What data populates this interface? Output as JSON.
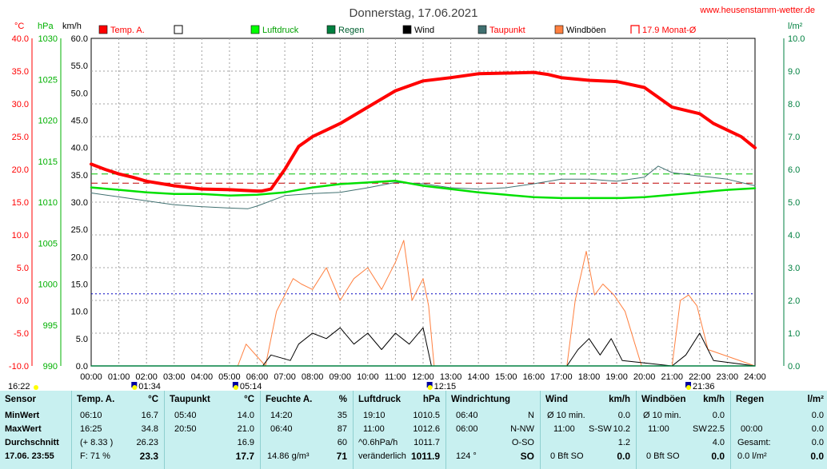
{
  "header": {
    "title": "Donnerstag, 17.06.2021",
    "website": "www.heusenstamm-wetter.de",
    "unit_temp": "°C",
    "unit_pressure": "hPa",
    "unit_wind": "km/h",
    "unit_rain": "l/m²"
  },
  "legend": [
    {
      "label": "Temp. A.",
      "color": "#ff0000",
      "style": "filled"
    },
    {
      "label": "",
      "color": "#ffffff",
      "style": "box"
    },
    {
      "label": "Luftdruck",
      "color": "#00ff00",
      "style": "filled"
    },
    {
      "label": "Regen",
      "color": "#008040",
      "style": "filled"
    },
    {
      "label": "Wind",
      "color": "#000000",
      "style": "filled"
    },
    {
      "label": "Taupunkt",
      "color": "#407070",
      "style": "filled"
    },
    {
      "label": "Windböen",
      "color": "#ff8040",
      "style": "filled"
    },
    {
      "label": "17.9 Monat-Ø",
      "color": "#ff0000",
      "style": "bracket"
    }
  ],
  "axes": {
    "temp_ticks": [
      "40.0",
      "35.0",
      "30.0",
      "25.0",
      "20.0",
      "15.0",
      "10.0",
      "5.0",
      "0.0",
      "-5.0",
      "-10.0"
    ],
    "pressure_ticks": [
      "1030",
      "1025",
      "1020",
      "1015",
      "1010",
      "1005",
      "1000",
      "995",
      "990"
    ],
    "wind_ticks": [
      "60.0",
      "55.0",
      "50.0",
      "45.0",
      "40.0",
      "35.0",
      "30.0",
      "25.0",
      "20.0",
      "15.0",
      "10.0",
      "5.0",
      "0.0"
    ],
    "rain_ticks": [
      "10.0",
      "9.0",
      "8.0",
      "7.0",
      "6.0",
      "5.0",
      "4.0",
      "3.0",
      "2.0",
      "1.0",
      "0.0"
    ],
    "time_ticks": [
      "00:00",
      "01:00",
      "02:00",
      "03:00",
      "04:00",
      "05:00",
      "06:00",
      "07:00",
      "08:00",
      "09:00",
      "10:00",
      "11:00",
      "12:00",
      "13:00",
      "14:00",
      "15:00",
      "16:00",
      "17:00",
      "18:00",
      "19:00",
      "20:00",
      "21:00",
      "22:00",
      "23:00",
      "24:00"
    ],
    "markers": [
      {
        "label": "16:22",
        "hour": -3.3
      },
      {
        "label": "01:34",
        "hour": 1.57
      },
      {
        "label": "05:14",
        "hour": 5.23
      },
      {
        "label": "12:15",
        "hour": 12.25
      },
      {
        "label": "21:36",
        "hour": 21.6
      }
    ]
  },
  "chart_data": {
    "type": "line",
    "x_unit": "hour",
    "x_range": [
      0,
      24
    ],
    "grid": true,
    "legend_position": "top",
    "reference_lines": [
      {
        "name": "Monat-Ø",
        "axis": "temp",
        "value": 17.9,
        "color": "#c00000",
        "style": "dashed"
      },
      {
        "axis": "temp",
        "value": 19.3,
        "color": "#00c000",
        "style": "dashed"
      },
      {
        "axis": "temp",
        "value": 1.0,
        "color": "#0000c0",
        "style": "dotted"
      }
    ],
    "series": [
      {
        "name": "Temp. A.",
        "axis": "temp",
        "color": "#ff0000",
        "x": [
          0,
          0.5,
          1,
          1.5,
          2,
          3,
          4,
          5,
          6,
          6.17,
          6.5,
          7,
          7.5,
          8,
          8.5,
          9,
          10,
          11,
          12,
          13,
          14,
          15,
          16,
          16.5,
          17,
          18,
          19,
          20,
          20.5,
          21,
          22,
          22.5,
          23,
          23.5,
          24
        ],
        "y": [
          20.8,
          20.0,
          19.3,
          18.8,
          18.2,
          17.5,
          17.0,
          16.9,
          16.7,
          16.7,
          17.0,
          20.0,
          23.5,
          25.0,
          26.0,
          27.0,
          29.5,
          32.0,
          33.5,
          34.0,
          34.6,
          34.7,
          34.8,
          34.5,
          34.0,
          33.6,
          33.4,
          32.5,
          31.0,
          29.5,
          28.5,
          27.0,
          26.0,
          25.0,
          23.3
        ]
      },
      {
        "name": "Luftdruck",
        "axis": "pressure",
        "color": "#00e000",
        "x": [
          0,
          1,
          2,
          3,
          4,
          5,
          6,
          7,
          8,
          9,
          10,
          11,
          12,
          13,
          14,
          15,
          16,
          17,
          18,
          19,
          19.17,
          20,
          21,
          22,
          23,
          24
        ],
        "y": [
          1011.8,
          1011.5,
          1011.2,
          1011.0,
          1011.0,
          1010.8,
          1010.9,
          1011.2,
          1011.8,
          1012.2,
          1012.4,
          1012.6,
          1012.0,
          1011.6,
          1011.2,
          1010.9,
          1010.6,
          1010.5,
          1010.5,
          1010.5,
          1010.5,
          1010.6,
          1010.9,
          1011.2,
          1011.5,
          1011.7
        ]
      },
      {
        "name": "Taupunkt",
        "axis": "temp",
        "color": "#407070",
        "x": [
          0,
          1,
          2,
          3,
          4,
          5,
          5.67,
          6,
          7,
          8,
          9,
          10,
          11,
          12,
          13,
          14,
          15,
          16,
          17,
          18,
          19,
          20,
          20.5,
          21,
          22,
          23,
          24
        ],
        "y": [
          16.4,
          15.8,
          15.2,
          14.6,
          14.3,
          14.1,
          14.0,
          14.4,
          16.0,
          16.3,
          16.5,
          17.2,
          18.0,
          17.8,
          17.2,
          17.0,
          17.2,
          17.8,
          18.5,
          18.5,
          18.2,
          18.8,
          20.5,
          19.5,
          19.0,
          18.5,
          17.5
        ]
      },
      {
        "name": "Wind",
        "axis": "wind",
        "color": "#000000",
        "x": [
          0,
          6.2,
          6.5,
          7.2,
          7.5,
          8,
          8.5,
          9,
          9.5,
          10,
          10.5,
          11,
          11.5,
          12,
          12.3,
          17.2,
          17.6,
          18,
          18.4,
          18.8,
          19.2,
          21,
          21.5,
          22,
          22.5,
          24
        ],
        "y": [
          0,
          0,
          2,
          1,
          4,
          6,
          5,
          7,
          4,
          6,
          3,
          6,
          4,
          7,
          0,
          0,
          3,
          5,
          2,
          5,
          1,
          0,
          2,
          6,
          1,
          0
        ]
      },
      {
        "name": "Windböen",
        "axis": "wind",
        "color": "#ff8040",
        "x": [
          0,
          5.3,
          5.6,
          6.3,
          6.7,
          7.3,
          7.6,
          8,
          8.5,
          9,
          9.5,
          10,
          10.5,
          11,
          11.3,
          11.6,
          12,
          12.2,
          12.4,
          17.2,
          17.5,
          17.9,
          18.2,
          18.5,
          18.9,
          19.3,
          19.6,
          19.9,
          21,
          21.3,
          21.6,
          21.9,
          22.3,
          24
        ],
        "y": [
          0,
          0,
          4,
          0,
          10,
          16,
          15,
          14,
          18,
          12,
          16,
          18,
          14,
          19,
          23,
          12,
          16,
          11,
          0,
          0,
          12,
          21,
          13,
          15,
          13,
          10,
          5,
          0,
          0,
          12,
          13,
          11,
          3,
          0
        ]
      },
      {
        "name": "Regen",
        "axis": "rain",
        "color": "#008040",
        "x": [
          0,
          24
        ],
        "y": [
          0,
          0
        ]
      }
    ]
  },
  "stats": {
    "sensor": {
      "header": "Sensor",
      "rows": [
        "MinWert",
        "MaxWert",
        "Durchschnitt",
        "17.06. 23:55"
      ]
    },
    "temp": {
      "header": "Temp. A.",
      "unit": "°C",
      "rows": [
        [
          "06:10",
          "16.7"
        ],
        [
          "16:25",
          "34.8"
        ],
        [
          "(+ 8.33 )",
          "26.23"
        ],
        [
          "F: 71 %",
          "23.3"
        ]
      ]
    },
    "dewpoint": {
      "header": "Taupunkt",
      "unit": "°C",
      "rows": [
        [
          "05:40",
          "14.0"
        ],
        [
          "20:50",
          "21.0"
        ],
        [
          "",
          "16.9"
        ],
        [
          "",
          "17.7"
        ]
      ]
    },
    "humidity": {
      "header": "Feuchte A.",
      "unit": "%",
      "rows": [
        [
          "14:20",
          "35"
        ],
        [
          "06:40",
          "87"
        ],
        [
          "",
          "60"
        ],
        [
          "14.86 g/m³",
          "71"
        ]
      ]
    },
    "pressure": {
      "header": "Luftdruck",
      "unit": "hPa",
      "rows": [
        [
          "19:10",
          "1010.5"
        ],
        [
          "11:00",
          "1012.6"
        ],
        [
          "^0.6hPa/h",
          "1011.7"
        ],
        [
          "veränderlich",
          "1011.9"
        ]
      ]
    },
    "winddir": {
      "header": "Windrichtung",
      "rows": [
        [
          "06:40",
          "N"
        ],
        [
          "06:00",
          "N-NW"
        ],
        [
          "",
          "O-SO"
        ],
        [
          "124 °",
          "SO"
        ]
      ]
    },
    "wind": {
      "header": "Wind",
      "unit": "km/h",
      "rows": [
        [
          "Ø 10 min.",
          "",
          "0.0"
        ],
        [
          "11:00",
          "S-SW",
          "10.2"
        ],
        [
          "",
          "",
          "1.2"
        ],
        [
          "0 Bft SO",
          "",
          "0.0"
        ]
      ]
    },
    "gust": {
      "header": "Windböen",
      "unit": "km/h",
      "rows": [
        [
          "Ø 10 min.",
          "",
          "0.0"
        ],
        [
          "11:00",
          "SW",
          "22.5"
        ],
        [
          "",
          "",
          "4.0"
        ],
        [
          "0 Bft SO",
          "",
          "0.0"
        ]
      ]
    },
    "rain": {
      "header": "Regen",
      "unit": "l/m²",
      "rows": [
        [
          "",
          "0.0"
        ],
        [
          "00:00",
          "0.0"
        ],
        [
          "Gesamt:",
          "0.0"
        ],
        [
          "0.0 l/m²",
          "0.0"
        ]
      ]
    }
  }
}
